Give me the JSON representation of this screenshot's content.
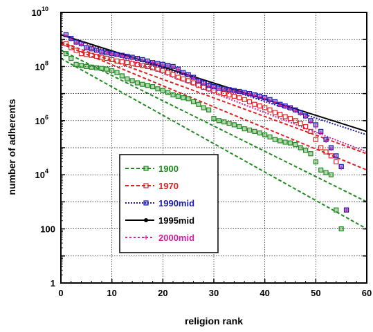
{
  "chart_data": {
    "type": "scatter",
    "title": "",
    "xlabel": "religion rank",
    "ylabel": "number of adherents",
    "xlim": [
      0,
      60
    ],
    "ylim": [
      1,
      10000000000
    ],
    "yscale": "log",
    "grid": true,
    "legend_position": "lower-left",
    "x_ticks": [
      "0",
      "10",
      "20",
      "30",
      "40",
      "50",
      "60"
    ],
    "y_ticks": [
      {
        "value": 1,
        "label": "1"
      },
      {
        "value": 100,
        "label": "100"
      },
      {
        "value": 10000,
        "label": "10",
        "sup": "4"
      },
      {
        "value": 1000000,
        "label": "10",
        "sup": "6"
      },
      {
        "value": 100000000,
        "label": "10",
        "sup": "8"
      },
      {
        "value": 10000000000,
        "label": "10",
        "sup": "10"
      }
    ],
    "series": [
      {
        "name": "1900",
        "color": "#1f8a1f",
        "marker": "square",
        "line": "dashed",
        "x": [
          1,
          2,
          3,
          4,
          5,
          6,
          7,
          8,
          9,
          10,
          11,
          12,
          13,
          14,
          15,
          16,
          17,
          18,
          19,
          20,
          21,
          22,
          23,
          24,
          25,
          26,
          27,
          28,
          29,
          30,
          31,
          32,
          33,
          34,
          35,
          36,
          37,
          38,
          39,
          40,
          41,
          42,
          43,
          44,
          45,
          46,
          47,
          48,
          49,
          50,
          51,
          52,
          53,
          54,
          55
        ],
        "y": [
          300000000,
          200000000,
          120000000,
          110000000,
          100000000,
          95000000,
          90000000,
          85000000,
          80000000,
          70000000,
          60000000,
          45000000,
          35000000,
          30000000,
          25000000,
          22000000,
          20000000,
          18000000,
          15000000,
          13000000,
          11000000,
          9000000,
          8000000,
          7000000,
          6500000,
          5000000,
          4000000,
          3000000,
          2500000,
          1200000,
          1000000,
          900000,
          800000,
          700000,
          600000,
          500000,
          450000,
          400000,
          350000,
          300000,
          250000,
          200000,
          180000,
          160000,
          150000,
          130000,
          100000,
          80000,
          60000,
          30000,
          15000,
          12000,
          10000,
          500,
          100
        ]
      },
      {
        "name": "1970",
        "color": "#e02020",
        "marker": "square-open",
        "line": "dashed",
        "x": [
          1,
          2,
          3,
          4,
          5,
          6,
          7,
          8,
          9,
          10,
          11,
          12,
          13,
          14,
          15,
          16,
          17,
          18,
          19,
          20,
          21,
          22,
          23,
          24,
          25,
          26,
          27,
          28,
          29,
          30,
          31,
          32,
          33,
          34,
          35,
          36,
          37,
          38,
          39,
          40,
          41,
          42,
          43,
          44,
          45,
          46,
          47,
          48,
          49,
          50,
          51,
          52,
          53,
          54,
          55,
          56
        ],
        "y": [
          700000000,
          500000000,
          400000000,
          300000000,
          280000000,
          260000000,
          240000000,
          220000000,
          200000000,
          180000000,
          160000000,
          150000000,
          140000000,
          130000000,
          120000000,
          110000000,
          100000000,
          90000000,
          80000000,
          70000000,
          60000000,
          50000000,
          40000000,
          35000000,
          30000000,
          25000000,
          20000000,
          17000000,
          15000000,
          13000000,
          11000000,
          10000000,
          9000000,
          8000000,
          7000000,
          6000000,
          5000000,
          4000000,
          3500000,
          3000000,
          2500000,
          2000000,
          1700000,
          1400000,
          1200000,
          1000000,
          800000,
          600000,
          400000,
          200000,
          100000,
          70000,
          50000,
          30000,
          20000,
          500
        ]
      },
      {
        "name": "1990mid",
        "color": "#1a1ab0",
        "marker": "square",
        "line": "dotted",
        "x": [
          1,
          2,
          3,
          4,
          5,
          6,
          7,
          8,
          9,
          10,
          11,
          12,
          13,
          14,
          15,
          16,
          17,
          18,
          19,
          20,
          21,
          22,
          23,
          24,
          25,
          26,
          27,
          28,
          29,
          30,
          31,
          32,
          33,
          34,
          35,
          36,
          37,
          38,
          39,
          40,
          41,
          42,
          43,
          44,
          45,
          46,
          47,
          48,
          49,
          50,
          51,
          52,
          53,
          54,
          55,
          56
        ],
        "y": [
          1500000000,
          1100000000,
          800000000,
          700000000,
          500000000,
          450000000,
          400000000,
          350000000,
          320000000,
          300000000,
          280000000,
          260000000,
          240000000,
          220000000,
          200000000,
          180000000,
          160000000,
          140000000,
          130000000,
          120000000,
          110000000,
          100000000,
          80000000,
          60000000,
          50000000,
          40000000,
          30000000,
          25000000,
          20000000,
          18000000,
          16000000,
          15000000,
          14000000,
          13000000,
          12000000,
          11000000,
          10000000,
          9000000,
          8000000,
          7000000,
          6000000,
          5000000,
          4000000,
          3500000,
          3000000,
          2500000,
          2000000,
          1500000,
          1000000,
          700000,
          400000,
          200000,
          100000,
          50000,
          20000,
          500
        ]
      },
      {
        "name": "1995mid",
        "color": "#000000",
        "marker": "dot",
        "line": "solid",
        "x": [
          0,
          60
        ],
        "y": [
          1500000000,
          400000
        ]
      },
      {
        "name": "2000mid",
        "color": "#d020a0",
        "marker": "plus",
        "line": "dotted",
        "x": [
          1,
          2,
          3,
          4,
          5,
          6,
          7,
          8,
          9,
          10,
          11,
          12,
          13,
          14,
          15,
          16,
          17,
          18,
          19,
          20,
          21,
          22,
          23,
          24,
          25,
          26,
          27,
          28,
          29,
          30,
          31,
          32,
          33,
          34,
          35,
          36,
          37,
          38,
          39,
          40,
          41,
          42,
          43,
          44,
          45,
          46,
          47,
          48,
          49,
          50,
          51,
          52,
          53,
          54,
          55,
          56
        ],
        "y": [
          1400000000,
          1000000000,
          750000000,
          650000000,
          480000000,
          430000000,
          380000000,
          340000000,
          310000000,
          290000000,
          270000000,
          250000000,
          230000000,
          210000000,
          190000000,
          170000000,
          150000000,
          140000000,
          125000000,
          115000000,
          105000000,
          95000000,
          78000000,
          58000000,
          48000000,
          38000000,
          29000000,
          24000000,
          19000000,
          17000000,
          15500000,
          14500000,
          13500000,
          12500000,
          11500000,
          10500000,
          9500000,
          8500000,
          7500000,
          6500000,
          5500000,
          4800000,
          3800000,
          3300000,
          2800000,
          2300000,
          1800000,
          1400000,
          900000,
          600000,
          350000,
          180000,
          90000,
          45000,
          18000,
          500
        ]
      }
    ],
    "fit_lines": [
      {
        "series": "1900",
        "x": [
          0,
          60
        ],
        "y": [
          400000000,
          1000
        ]
      },
      {
        "series": "1900",
        "x": [
          0,
          60
        ],
        "y": [
          200000000,
          100
        ]
      },
      {
        "series": "1970",
        "x": [
          0,
          60
        ],
        "y": [
          800000000,
          60000
        ]
      },
      {
        "series": "1970",
        "x": [
          0,
          60
        ],
        "y": [
          700000000,
          15000
        ]
      },
      {
        "series": "1990mid",
        "x": [
          0,
          60
        ],
        "y": [
          1500000000,
          300000
        ]
      },
      {
        "series": "2000mid",
        "x": [
          0,
          60
        ],
        "y": [
          1600000000,
          70000
        ]
      }
    ]
  }
}
